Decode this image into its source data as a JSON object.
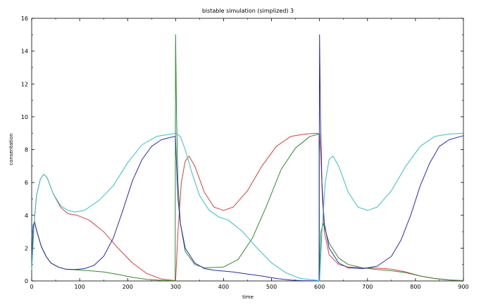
{
  "chart_data": {
    "type": "line",
    "title": "bistable simulation (simplized) 3",
    "xlabel": "time",
    "ylabel": "consentation",
    "xlim": [
      0,
      900
    ],
    "ylim": [
      0,
      16
    ],
    "xticks": [
      0,
      100,
      200,
      300,
      400,
      500,
      600,
      700,
      800,
      900
    ],
    "yticks": [
      0,
      2,
      4,
      6,
      8,
      10,
      12,
      14,
      16
    ],
    "grid": false,
    "legend": "none",
    "series": [
      {
        "color": "#e03c3c",
        "points": [
          [
            0,
            0.7
          ],
          [
            5,
            3.5
          ],
          [
            10,
            5.2
          ],
          [
            18,
            6.2
          ],
          [
            25,
            6.5
          ],
          [
            32,
            6.3
          ],
          [
            45,
            5.3
          ],
          [
            60,
            4.5
          ],
          [
            75,
            4.1
          ],
          [
            95,
            4.0
          ],
          [
            120,
            3.7
          ],
          [
            150,
            3.0
          ],
          [
            180,
            2.0
          ],
          [
            210,
            1.1
          ],
          [
            240,
            0.45
          ],
          [
            270,
            0.12
          ],
          [
            299,
            0.02
          ],
          [
            300,
            0.0
          ],
          [
            305,
            3.0
          ],
          [
            312,
            6.0
          ],
          [
            320,
            7.3
          ],
          [
            328,
            7.6
          ],
          [
            340,
            7.0
          ],
          [
            360,
            5.4
          ],
          [
            380,
            4.5
          ],
          [
            400,
            4.3
          ],
          [
            420,
            4.5
          ],
          [
            450,
            5.5
          ],
          [
            480,
            7.0
          ],
          [
            510,
            8.2
          ],
          [
            540,
            8.8
          ],
          [
            570,
            8.95
          ],
          [
            595,
            9.0
          ],
          [
            600,
            8.95
          ],
          [
            603,
            7.5
          ],
          [
            606,
            5.0
          ],
          [
            610,
            3.0
          ],
          [
            620,
            1.6
          ],
          [
            640,
            1.0
          ],
          [
            660,
            0.85
          ],
          [
            690,
            0.8
          ],
          [
            720,
            0.78
          ],
          [
            750,
            0.72
          ],
          [
            780,
            0.55
          ],
          [
            810,
            0.3
          ],
          [
            840,
            0.15
          ],
          [
            870,
            0.06
          ],
          [
            900,
            0.02
          ]
        ]
      },
      {
        "color": "#2e8b2e",
        "points": [
          [
            0,
            0.7
          ],
          [
            3,
            3.4
          ],
          [
            6,
            3.6
          ],
          [
            10,
            3.1
          ],
          [
            20,
            2.1
          ],
          [
            30,
            1.5
          ],
          [
            40,
            1.1
          ],
          [
            55,
            0.85
          ],
          [
            70,
            0.72
          ],
          [
            90,
            0.68
          ],
          [
            120,
            0.62
          ],
          [
            150,
            0.55
          ],
          [
            180,
            0.4
          ],
          [
            210,
            0.22
          ],
          [
            240,
            0.1
          ],
          [
            270,
            0.04
          ],
          [
            299,
            0.01
          ],
          [
            300,
            15.0
          ],
          [
            302,
            10.0
          ],
          [
            305,
            6.0
          ],
          [
            310,
            3.5
          ],
          [
            320,
            1.8
          ],
          [
            340,
            1.0
          ],
          [
            360,
            0.8
          ],
          [
            400,
            0.85
          ],
          [
            430,
            1.3
          ],
          [
            460,
            2.6
          ],
          [
            490,
            4.6
          ],
          [
            520,
            6.8
          ],
          [
            550,
            8.1
          ],
          [
            580,
            8.8
          ],
          [
            599,
            8.95
          ],
          [
            600,
            0.0
          ],
          [
            603,
            3.0
          ],
          [
            608,
            3.5
          ],
          [
            620,
            2.3
          ],
          [
            640,
            1.4
          ],
          [
            660,
            1.0
          ],
          [
            690,
            0.8
          ],
          [
            720,
            0.7
          ],
          [
            750,
            0.62
          ],
          [
            780,
            0.5
          ],
          [
            810,
            0.3
          ],
          [
            840,
            0.15
          ],
          [
            870,
            0.06
          ],
          [
            900,
            0.02
          ]
        ]
      },
      {
        "color": "#2a2ab8",
        "points": [
          [
            0,
            0.7
          ],
          [
            3,
            3.4
          ],
          [
            6,
            3.6
          ],
          [
            10,
            3.1
          ],
          [
            20,
            2.1
          ],
          [
            30,
            1.5
          ],
          [
            40,
            1.1
          ],
          [
            55,
            0.85
          ],
          [
            70,
            0.72
          ],
          [
            90,
            0.7
          ],
          [
            110,
            0.75
          ],
          [
            130,
            0.95
          ],
          [
            150,
            1.5
          ],
          [
            170,
            2.6
          ],
          [
            190,
            4.3
          ],
          [
            210,
            6.1
          ],
          [
            230,
            7.4
          ],
          [
            250,
            8.2
          ],
          [
            270,
            8.6
          ],
          [
            290,
            8.75
          ],
          [
            299,
            8.8
          ],
          [
            300,
            8.6
          ],
          [
            302,
            7.0
          ],
          [
            305,
            5.0
          ],
          [
            310,
            3.5
          ],
          [
            320,
            2.0
          ],
          [
            340,
            1.1
          ],
          [
            360,
            0.75
          ],
          [
            380,
            0.65
          ],
          [
            400,
            0.6
          ],
          [
            420,
            0.55
          ],
          [
            450,
            0.42
          ],
          [
            480,
            0.3
          ],
          [
            510,
            0.15
          ],
          [
            540,
            0.05
          ],
          [
            560,
            0.02
          ],
          [
            599,
            0.0
          ],
          [
            600,
            15.0
          ],
          [
            602,
            10.0
          ],
          [
            605,
            6.0
          ],
          [
            610,
            3.5
          ],
          [
            620,
            2.0
          ],
          [
            640,
            1.1
          ],
          [
            660,
            0.8
          ],
          [
            690,
            0.75
          ],
          [
            720,
            0.9
          ],
          [
            750,
            1.5
          ],
          [
            770,
            2.5
          ],
          [
            790,
            4.0
          ],
          [
            810,
            5.8
          ],
          [
            830,
            7.2
          ],
          [
            850,
            8.2
          ],
          [
            870,
            8.6
          ],
          [
            900,
            8.85
          ]
        ]
      },
      {
        "color": "#2ec4c4",
        "points": [
          [
            0,
            0.7
          ],
          [
            5,
            3.5
          ],
          [
            10,
            5.2
          ],
          [
            18,
            6.2
          ],
          [
            25,
            6.5
          ],
          [
            32,
            6.3
          ],
          [
            45,
            5.3
          ],
          [
            60,
            4.6
          ],
          [
            75,
            4.3
          ],
          [
            90,
            4.2
          ],
          [
            110,
            4.3
          ],
          [
            140,
            4.9
          ],
          [
            170,
            5.8
          ],
          [
            200,
            7.2
          ],
          [
            230,
            8.3
          ],
          [
            260,
            8.8
          ],
          [
            290,
            8.95
          ],
          [
            300,
            9.0
          ],
          [
            310,
            8.8
          ],
          [
            320,
            8.0
          ],
          [
            335,
            6.5
          ],
          [
            350,
            5.2
          ],
          [
            370,
            4.3
          ],
          [
            390,
            3.9
          ],
          [
            410,
            3.7
          ],
          [
            440,
            3.0
          ],
          [
            470,
            2.0
          ],
          [
            500,
            1.1
          ],
          [
            530,
            0.5
          ],
          [
            560,
            0.15
          ],
          [
            590,
            0.05
          ],
          [
            599,
            0.01
          ],
          [
            600,
            0.0
          ],
          [
            605,
            3.0
          ],
          [
            612,
            6.0
          ],
          [
            620,
            7.4
          ],
          [
            628,
            7.6
          ],
          [
            640,
            7.0
          ],
          [
            660,
            5.4
          ],
          [
            680,
            4.5
          ],
          [
            700,
            4.3
          ],
          [
            720,
            4.5
          ],
          [
            750,
            5.5
          ],
          [
            780,
            7.0
          ],
          [
            810,
            8.2
          ],
          [
            840,
            8.8
          ],
          [
            870,
            8.95
          ],
          [
            900,
            9.0
          ]
        ]
      }
    ]
  }
}
